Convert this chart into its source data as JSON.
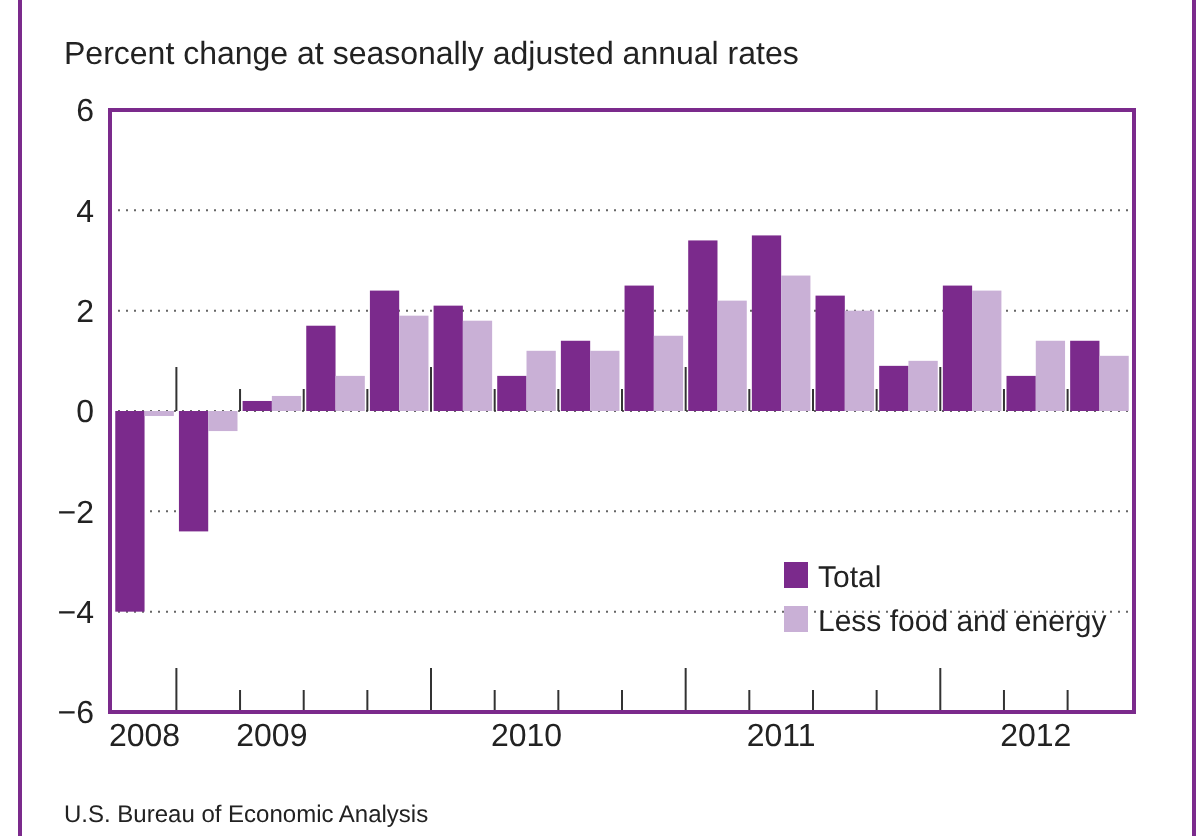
{
  "chart_data": {
    "type": "bar",
    "title": "Percent change at seasonally adjusted annual rates",
    "annotations": [
      "U.S. Bureau of Economic Analysis"
    ],
    "categories": [
      "2008",
      null,
      "2009",
      null,
      null,
      null,
      "2010",
      null,
      null,
      null,
      "2011",
      null,
      null,
      null,
      "2012",
      null
    ],
    "series": [
      {
        "name": "Total",
        "color": "#7b2a8c",
        "values": [
          -4.0,
          -2.4,
          0.2,
          1.7,
          2.4,
          2.1,
          0.7,
          1.4,
          2.5,
          3.4,
          3.5,
          2.3,
          0.9,
          2.5,
          0.7,
          1.4
        ]
      },
      {
        "name": "Less food and energy",
        "color": "#c9b0d6",
        "values": [
          -0.1,
          -0.4,
          0.3,
          0.7,
          1.9,
          1.8,
          1.2,
          1.2,
          1.5,
          2.2,
          2.7,
          2.0,
          1.0,
          2.4,
          1.4,
          1.1
        ]
      }
    ],
    "ylim": [
      -6,
      6
    ],
    "yticks": [
      6,
      4,
      2,
      0,
      {
        "value": -2,
        "label": "−2"
      },
      {
        "value": -4,
        "label": "−4"
      },
      {
        "value": -6,
        "label": "−6"
      }
    ],
    "grid": "y",
    "legend": "bottom right"
  }
}
